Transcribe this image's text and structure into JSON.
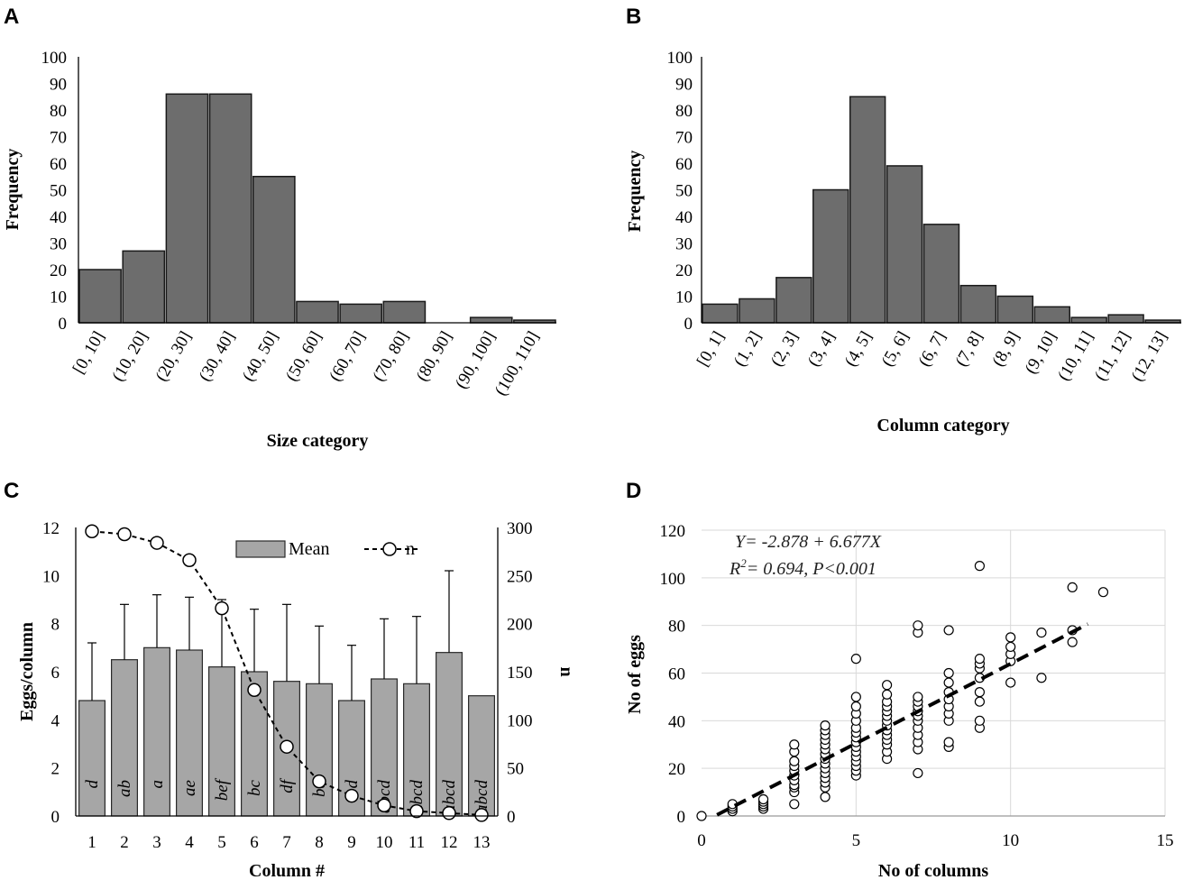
{
  "panels": {
    "A": "A",
    "B": "B",
    "C": "C",
    "D": "D"
  },
  "chart_data": [
    {
      "panel": "A",
      "type": "bar",
      "title": "",
      "xlabel": "Size category",
      "ylabel": "Frequency",
      "ylim": [
        0,
        100
      ],
      "yticks": [
        0,
        10,
        20,
        30,
        40,
        50,
        60,
        70,
        80,
        90,
        100
      ],
      "categories": [
        "[0, 10]",
        "(10, 20]",
        "(20, 30]",
        "(30, 40]",
        "(40, 50]",
        "(50, 60]",
        "(60, 70]",
        "(70, 80]",
        "(80, 90]",
        "(90, 100]",
        "(100, 110]"
      ],
      "values": [
        20,
        27,
        86,
        86,
        55,
        8,
        7,
        8,
        0,
        2,
        1
      ],
      "color": "#6d6d6d"
    },
    {
      "panel": "B",
      "type": "bar",
      "title": "",
      "xlabel": "Column category",
      "ylabel": "Frequency",
      "ylim": [
        0,
        100
      ],
      "yticks": [
        0,
        10,
        20,
        30,
        40,
        50,
        60,
        70,
        80,
        90,
        100
      ],
      "categories": [
        "[0, 1]",
        "(1, 2]",
        "(2, 3]",
        "(3, 4]",
        "(4, 5]",
        "(5, 6]",
        "(6, 7]",
        "(7, 8]",
        "(8, 9]",
        "(9, 10]",
        "(10, 11]",
        "(11, 12]",
        "(12, 13]"
      ],
      "values": [
        7,
        9,
        17,
        50,
        85,
        59,
        37,
        14,
        10,
        6,
        2,
        3,
        1
      ],
      "color": "#6d6d6d"
    },
    {
      "panel": "C",
      "type": "bar",
      "title": "",
      "xlabel": "Column #",
      "ylabel": "Eggs/column",
      "y2label": "n",
      "ylim": [
        0,
        12
      ],
      "y2lim": [
        0,
        300
      ],
      "yticks": [
        0,
        2,
        4,
        6,
        8,
        10,
        12
      ],
      "y2ticks": [
        0,
        50,
        100,
        150,
        200,
        250,
        300
      ],
      "categories": [
        "1",
        "2",
        "3",
        "4",
        "5",
        "6",
        "7",
        "8",
        "9",
        "10",
        "11",
        "12",
        "13"
      ],
      "legend": [
        "Mean",
        "n"
      ],
      "series": [
        {
          "name": "Mean",
          "type": "bar",
          "values": [
            4.8,
            6.5,
            7.0,
            6.9,
            6.2,
            6.0,
            5.6,
            5.5,
            4.8,
            5.7,
            5.5,
            6.8,
            5.0
          ],
          "errors": [
            2.4,
            2.3,
            2.2,
            2.2,
            2.8,
            2.6,
            3.2,
            2.4,
            2.3,
            2.5,
            2.8,
            3.4,
            0
          ],
          "labels": [
            "d",
            "ab",
            "a",
            "ae",
            "bef",
            "bc",
            "df",
            "bd",
            "bd",
            "abcd",
            "abcd",
            "abcd",
            "abcd"
          ]
        },
        {
          "name": "n",
          "type": "line",
          "axis": "right",
          "values": [
            296,
            293,
            284,
            266,
            216,
            131,
            72,
            36,
            21,
            11,
            5,
            3,
            1
          ]
        }
      ],
      "color": "#a6a6a6"
    },
    {
      "panel": "D",
      "type": "scatter",
      "title": "",
      "xlabel": "No of columns",
      "ylabel": "No of eggs",
      "xlim": [
        0,
        15
      ],
      "ylim": [
        0,
        120
      ],
      "xticks": [
        0,
        5,
        10,
        15
      ],
      "yticks": [
        0,
        20,
        40,
        60,
        80,
        100,
        120
      ],
      "equation": "Y= -2.878 + 6.677X",
      "r2_label": "R",
      "r2_sup": "2",
      "r2_rest": "= 0.694,  P<0.001",
      "regression": {
        "intercept": -2.878,
        "slope": 6.677,
        "x_range": [
          0.5,
          12.5
        ]
      },
      "points": [
        [
          0,
          0
        ],
        [
          1,
          2
        ],
        [
          1,
          3
        ],
        [
          1,
          4
        ],
        [
          1,
          5
        ],
        [
          2,
          3
        ],
        [
          2,
          4
        ],
        [
          2,
          5
        ],
        [
          2,
          6
        ],
        [
          2,
          7
        ],
        [
          3,
          5
        ],
        [
          3,
          10
        ],
        [
          3,
          12
        ],
        [
          3,
          13
        ],
        [
          3,
          15
        ],
        [
          3,
          17
        ],
        [
          3,
          19
        ],
        [
          3,
          21
        ],
        [
          3,
          23
        ],
        [
          3,
          27
        ],
        [
          3,
          30
        ],
        [
          4,
          8
        ],
        [
          4,
          12
        ],
        [
          4,
          14
        ],
        [
          4,
          16
        ],
        [
          4,
          18
        ],
        [
          4,
          20
        ],
        [
          4,
          22
        ],
        [
          4,
          24
        ],
        [
          4,
          26
        ],
        [
          4,
          28
        ],
        [
          4,
          30
        ],
        [
          4,
          32
        ],
        [
          4,
          34
        ],
        [
          4,
          36
        ],
        [
          4,
          38
        ],
        [
          5,
          17
        ],
        [
          5,
          19
        ],
        [
          5,
          21
        ],
        [
          5,
          23
        ],
        [
          5,
          25
        ],
        [
          5,
          27
        ],
        [
          5,
          29
        ],
        [
          5,
          31
        ],
        [
          5,
          33
        ],
        [
          5,
          35
        ],
        [
          5,
          37
        ],
        [
          5,
          40
        ],
        [
          5,
          43
        ],
        [
          5,
          46
        ],
        [
          5,
          50
        ],
        [
          5,
          66
        ],
        [
          6,
          24
        ],
        [
          6,
          27
        ],
        [
          6,
          30
        ],
        [
          6,
          32
        ],
        [
          6,
          34
        ],
        [
          6,
          36
        ],
        [
          6,
          38
        ],
        [
          6,
          40
        ],
        [
          6,
          42
        ],
        [
          6,
          44
        ],
        [
          6,
          46
        ],
        [
          6,
          48
        ],
        [
          6,
          51
        ],
        [
          6,
          55
        ],
        [
          7,
          18
        ],
        [
          7,
          28
        ],
        [
          7,
          31
        ],
        [
          7,
          34
        ],
        [
          7,
          37
        ],
        [
          7,
          40
        ],
        [
          7,
          42
        ],
        [
          7,
          44
        ],
        [
          7,
          46
        ],
        [
          7,
          48
        ],
        [
          7,
          50
        ],
        [
          7,
          77
        ],
        [
          7,
          80
        ],
        [
          8,
          29
        ],
        [
          8,
          31
        ],
        [
          8,
          40
        ],
        [
          8,
          43
        ],
        [
          8,
          46
        ],
        [
          8,
          49
        ],
        [
          8,
          52
        ],
        [
          8,
          56
        ],
        [
          8,
          60
        ],
        [
          8,
          78
        ],
        [
          9,
          37
        ],
        [
          9,
          40
        ],
        [
          9,
          48
        ],
        [
          9,
          52
        ],
        [
          9,
          58
        ],
        [
          9,
          62
        ],
        [
          9,
          64
        ],
        [
          9,
          66
        ],
        [
          9,
          105
        ],
        [
          10,
          56
        ],
        [
          10,
          65
        ],
        [
          10,
          68
        ],
        [
          10,
          71
        ],
        [
          10,
          75
        ],
        [
          11,
          58
        ],
        [
          11,
          77
        ],
        [
          12,
          73
        ],
        [
          12,
          78
        ],
        [
          12,
          96
        ],
        [
          13,
          94
        ]
      ]
    }
  ]
}
